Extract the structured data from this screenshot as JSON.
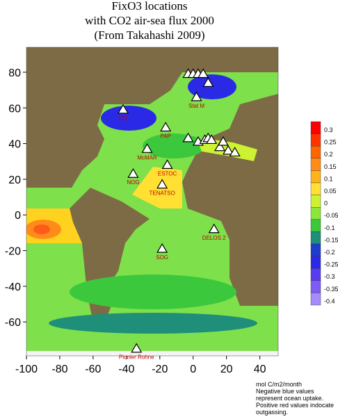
{
  "title": [
    "FixO3 locations",
    "with CO2 air-sea flux  2000",
    "(From Takahashi 2009)"
  ],
  "map": {
    "xlim": [
      -100,
      51
    ],
    "ylim": [
      -79,
      94
    ],
    "xticks": [
      -100,
      -80,
      -60,
      -40,
      -20,
      0,
      20,
      40
    ],
    "yticks": [
      80,
      60,
      40,
      20,
      0,
      -20,
      -40,
      -60
    ],
    "stations": [
      {
        "label": "PAP",
        "lon": -16.5,
        "lat": 49
      },
      {
        "label": "McMAR",
        "lon": -27.6,
        "lat": 37
      },
      {
        "label": "NOG",
        "lon": -36,
        "lat": 23
      },
      {
        "label": "TENATSO",
        "lon": -18.6,
        "lat": 17
      },
      {
        "label": "ESTOC",
        "lon": -15.5,
        "lat": 28
      },
      {
        "label": "SOG",
        "lon": -18.6,
        "lat": -19
      },
      {
        "label": "DELOS 2",
        "lon": 12.5,
        "lat": -8
      },
      {
        "label": "Pionier Rohne",
        "lon": -34,
        "lat": -75
      },
      {
        "label": "CIS",
        "lon": -42,
        "lat": 59
      },
      {
        "label": "Stat M",
        "lon": 2,
        "lat": 66
      },
      {
        "label": null,
        "lon": -3,
        "lat": 43
      },
      {
        "label": null,
        "lon": 3,
        "lat": 41
      },
      {
        "label": null,
        "lon": 7,
        "lat": 42
      },
      {
        "label": null,
        "lon": 9,
        "lat": 43
      },
      {
        "label": null,
        "lon": 11,
        "lat": 42
      },
      {
        "label": null,
        "lon": 16,
        "lat": 38
      },
      {
        "label": null,
        "lon": 18,
        "lat": 41
      },
      {
        "label": null,
        "lon": 21,
        "lat": 36
      },
      {
        "label": null,
        "lon": 25,
        "lat": 35
      },
      {
        "label": null,
        "lon": -3,
        "lat": 79
      },
      {
        "label": null,
        "lon": 0,
        "lat": 79
      },
      {
        "label": null,
        "lon": 3,
        "lat": 79
      },
      {
        "label": null,
        "lon": 6,
        "lat": 79
      },
      {
        "label": null,
        "lon": 9,
        "lat": 74
      }
    ]
  },
  "colorbar": {
    "ticks": [
      0.3,
      0.25,
      0.2,
      0.15,
      0.1,
      0.05,
      0,
      -0.05,
      -0.1,
      -0.15,
      -0.2,
      -0.25,
      -0.3,
      -0.35,
      -0.4
    ],
    "colors": [
      "#ff0000",
      "#ff3300",
      "#ff6600",
      "#ff8c1a",
      "#ffb31a",
      "#ffe033",
      "#ccf233",
      "#8ce63c",
      "#3cc83c",
      "#1f8f7a",
      "#1f3ccc",
      "#2a2ae6",
      "#5a3cf0",
      "#7d5cf5",
      "#a58cfa"
    ]
  },
  "notes": [
    "mol C/m2/month",
    "Negative blue values",
    "represent ocean uptake.",
    "Positive red values indocate",
    "outgassing."
  ]
}
